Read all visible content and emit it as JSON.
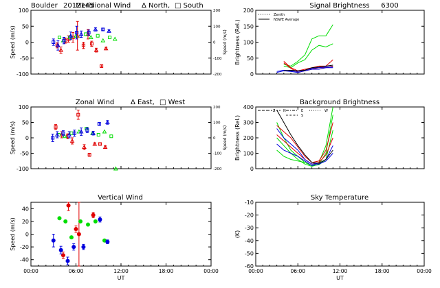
{
  "header": {
    "station": "Boulder",
    "date_code": "2012145"
  },
  "colors": {
    "red": "#e00000",
    "green": "#00dd00",
    "blue": "#0000dd",
    "black": "#000000"
  },
  "chart_data": [
    {
      "id": "meridional",
      "type": "scatter",
      "title": "Meridional Wind",
      "legend_text": [
        "Δ North,",
        "□ South"
      ],
      "xlabel": "",
      "ylabel": "Speed (m/s)",
      "ylabel_right": "Speed (m/s)",
      "xlim": [
        0,
        24
      ],
      "ylim": [
        -100,
        100
      ],
      "yticks": [
        -100,
        -50,
        0,
        50,
        100
      ],
      "ylim_right": [
        -200,
        200
      ],
      "yticks_right": [
        -200,
        -100,
        0,
        100,
        200
      ],
      "xticks": [
        0,
        6,
        12,
        18,
        24
      ],
      "xtick_labels": [
        "",
        "",
        "",
        "",
        ""
      ],
      "series": [
        {
          "name": "red",
          "color": "red",
          "x": [
            3.5,
            4.0,
            4.6,
            5.0,
            5.6,
            6.2,
            7.0,
            7.6,
            8.1,
            8.7,
            9.4,
            10.0
          ],
          "y": [
            -10,
            -25,
            5,
            10,
            15,
            20,
            -10,
            25,
            -5,
            -25,
            -75,
            -20
          ],
          "err": [
            8,
            10,
            8,
            10,
            15,
            45,
            10,
            15,
            8,
            6,
            4,
            4
          ]
        },
        {
          "name": "green",
          "color": "green",
          "x": [
            3.8,
            4.3,
            5.2,
            6.0,
            7.3,
            8.0,
            8.9,
            9.6,
            10.5,
            11.2
          ],
          "y": [
            15,
            5,
            15,
            20,
            25,
            15,
            20,
            5,
            15,
            10
          ]
        },
        {
          "name": "blue",
          "color": "blue",
          "x": [
            3.0,
            3.6,
            4.4,
            5.3,
            6.1,
            6.7,
            7.7,
            8.6,
            9.6,
            10.4
          ],
          "y": [
            0,
            -10,
            5,
            20,
            30,
            25,
            30,
            40,
            40,
            35
          ],
          "err": [
            10,
            15,
            10,
            12,
            20,
            10,
            8,
            5,
            4,
            4
          ]
        }
      ]
    },
    {
      "id": "signal",
      "type": "line",
      "title": "Signal Brightness",
      "wavelength": "6300",
      "legend": [
        "Zenith",
        "NSWE Average"
      ],
      "xlabel": "",
      "ylabel": "Brightness (Rel.)",
      "xlim": [
        0,
        24
      ],
      "ylim": [
        0,
        200
      ],
      "yticks": [
        0,
        50,
        100,
        150,
        200
      ],
      "xticks": [
        0,
        6,
        12,
        18,
        24
      ],
      "xtick_labels": [
        "",
        "",
        "",
        "",
        ""
      ],
      "series": [
        {
          "name": "green-1",
          "color": "green",
          "x": [
            4,
            5,
            6,
            7,
            8,
            9,
            10,
            11
          ],
          "y": [
            30,
            25,
            40,
            60,
            110,
            120,
            120,
            155
          ]
        },
        {
          "name": "green-2",
          "color": "green",
          "x": [
            4,
            5,
            6,
            7,
            8,
            9,
            10,
            11
          ],
          "y": [
            25,
            20,
            35,
            45,
            75,
            90,
            85,
            95
          ]
        },
        {
          "name": "red-1",
          "color": "red",
          "x": [
            4,
            5,
            6,
            7,
            8,
            9,
            10,
            11
          ],
          "y": [
            40,
            20,
            10,
            15,
            20,
            25,
            25,
            45
          ]
        },
        {
          "name": "red-2",
          "color": "red",
          "x": [
            4,
            5,
            6,
            7,
            8,
            9,
            10,
            11
          ],
          "y": [
            35,
            18,
            5,
            10,
            15,
            20,
            20,
            25
          ]
        },
        {
          "name": "blue-1",
          "color": "blue",
          "x": [
            3,
            4,
            5,
            6,
            7,
            8,
            9,
            10,
            11
          ],
          "y": [
            5,
            10,
            8,
            5,
            10,
            15,
            15,
            20,
            20
          ]
        },
        {
          "name": "blue-2",
          "color": "blue",
          "x": [
            3,
            4,
            5,
            6,
            7,
            8,
            9,
            10,
            11
          ],
          "y": [
            8,
            12,
            10,
            8,
            12,
            18,
            20,
            22,
            22
          ]
        },
        {
          "name": "black-1",
          "color": "black",
          "x": [
            4,
            5,
            6,
            7,
            8,
            9,
            10,
            11
          ],
          "y": [
            10,
            12,
            10,
            12,
            20,
            22,
            25,
            28
          ]
        }
      ]
    },
    {
      "id": "zonal",
      "type": "scatter",
      "title": "Zonal Wind",
      "legend_text": [
        "Δ East,",
        "□ West"
      ],
      "xlabel": "",
      "ylabel": "Speed (m/s)",
      "ylabel_right": "Speed (m/s)",
      "xlim": [
        0,
        24
      ],
      "ylim": [
        -100,
        100
      ],
      "yticks": [
        -100,
        -50,
        0,
        50,
        100
      ],
      "ylim_right": [
        -200,
        200
      ],
      "yticks_right": [
        -200,
        -100,
        0,
        100,
        200
      ],
      "xticks": [
        0,
        6,
        12,
        18,
        24
      ],
      "xtick_labels": [
        "",
        "",
        "",
        "",
        ""
      ],
      "series": [
        {
          "name": "red",
          "color": "red",
          "x": [
            3.3,
            4.1,
            4.9,
            5.5,
            6.3,
            7.1,
            7.8,
            8.5,
            9.2,
            9.9
          ],
          "y": [
            35,
            10,
            5,
            -10,
            75,
            -30,
            -55,
            -20,
            -20,
            -30
          ],
          "err": [
            8,
            10,
            8,
            10,
            15,
            8,
            5,
            4,
            4,
            4
          ]
        },
        {
          "name": "green",
          "color": "green",
          "x": [
            3.7,
            4.5,
            5.4,
            6.4,
            7.4,
            8.2,
            9.0,
            9.8,
            10.7,
            11.3
          ],
          "y": [
            10,
            5,
            15,
            20,
            30,
            15,
            10,
            20,
            5,
            -100
          ]
        },
        {
          "name": "blue",
          "color": "blue",
          "x": [
            2.9,
            3.5,
            4.3,
            5.1,
            5.8,
            6.7,
            7.5,
            8.3,
            9.1,
            10.2
          ],
          "y": [
            0,
            10,
            15,
            10,
            15,
            20,
            25,
            15,
            45,
            50
          ],
          "err": [
            12,
            10,
            8,
            10,
            10,
            12,
            8,
            6,
            5,
            6
          ]
        }
      ]
    },
    {
      "id": "background",
      "type": "line",
      "title": "Background Brightness",
      "legend": [
        "Z",
        "N",
        "E",
        "S",
        "W"
      ],
      "xlabel": "",
      "ylabel": "Brightness (Rel.)",
      "xlim": [
        0,
        24
      ],
      "ylim": [
        0,
        400
      ],
      "yticks": [
        0,
        100,
        200,
        300,
        400
      ],
      "xticks": [
        0,
        6,
        12,
        18,
        24
      ],
      "xtick_labels": [
        "",
        "",
        "",
        "",
        ""
      ],
      "series": [
        {
          "name": "green-1",
          "color": "green",
          "x": [
            3,
            4,
            5,
            6,
            7,
            8,
            9,
            10,
            11
          ],
          "y": [
            300,
            200,
            120,
            80,
            40,
            20,
            40,
            150,
            400
          ]
        },
        {
          "name": "green-2",
          "color": "green",
          "x": [
            3,
            4,
            5,
            6,
            7,
            8,
            9,
            10,
            11
          ],
          "y": [
            200,
            150,
            100,
            60,
            30,
            15,
            30,
            100,
            350
          ]
        },
        {
          "name": "green-3",
          "color": "green",
          "x": [
            3,
            4,
            5,
            6,
            7,
            8,
            9,
            10,
            11
          ],
          "y": [
            120,
            80,
            60,
            50,
            40,
            20,
            25,
            60,
            250
          ]
        },
        {
          "name": "red-1",
          "color": "red",
          "x": [
            3,
            4,
            5,
            6,
            7,
            8,
            9,
            10,
            11
          ],
          "y": [
            280,
            240,
            200,
            140,
            80,
            40,
            50,
            120,
            300
          ]
        },
        {
          "name": "red-2",
          "color": "red",
          "x": [
            3,
            4,
            5,
            6,
            7,
            8,
            9,
            10,
            11
          ],
          "y": [
            220,
            180,
            140,
            100,
            60,
            30,
            40,
            90,
            200
          ]
        },
        {
          "name": "blue-1",
          "color": "blue",
          "x": [
            3,
            4,
            5,
            6,
            7,
            8,
            9,
            10,
            11
          ],
          "y": [
            260,
            200,
            160,
            120,
            60,
            30,
            35,
            60,
            150
          ]
        },
        {
          "name": "blue-2",
          "color": "blue",
          "x": [
            3,
            4,
            5,
            6,
            7,
            8,
            9,
            10,
            11
          ],
          "y": [
            160,
            120,
            100,
            80,
            50,
            20,
            30,
            50,
            100
          ]
        },
        {
          "name": "black-1",
          "color": "black",
          "x": [
            3,
            4,
            5,
            6,
            7,
            8,
            9,
            10,
            11
          ],
          "y": [
            380,
            300,
            220,
            150,
            90,
            40,
            35,
            60,
            120
          ]
        }
      ]
    },
    {
      "id": "vertical",
      "type": "scatter",
      "title": "Vertical Wind",
      "xlabel": "UT",
      "ylabel": "Speed (m/s)",
      "xlim": [
        0,
        24
      ],
      "ylim": [
        -50,
        50
      ],
      "yticks": [
        -40,
        -20,
        0,
        20,
        40
      ],
      "xticks": [
        0,
        6,
        12,
        18,
        24
      ],
      "xtick_labels": [
        "00:00",
        "06:00",
        "12:00",
        "18:00",
        "00:00"
      ],
      "series": [
        {
          "name": "red",
          "color": "red",
          "x": [
            4.3,
            5.0,
            6.0,
            6.4,
            8.3
          ],
          "y": [
            -33,
            45,
            8,
            0,
            30
          ],
          "err": [
            5,
            8,
            5,
            90,
            4
          ]
        },
        {
          "name": "green",
          "color": "green",
          "x": [
            3.8,
            4.6,
            5.4,
            6.6,
            7.6,
            8.6,
            9.8
          ],
          "y": [
            25,
            20,
            -5,
            20,
            15,
            20,
            -10
          ]
        },
        {
          "name": "blue",
          "color": "blue",
          "x": [
            3.0,
            4.0,
            4.9,
            5.7,
            7.0,
            9.2,
            10.2
          ],
          "y": [
            -10,
            -25,
            -42,
            -20,
            -20,
            23,
            -12
          ],
          "err": [
            10,
            6,
            6,
            5,
            4,
            4,
            3
          ]
        }
      ]
    },
    {
      "id": "sky",
      "type": "line",
      "title": "Sky Temperature",
      "xlabel": "UT",
      "ylabel": "(K)",
      "xlim": [
        0,
        24
      ],
      "ylim": [
        -60,
        -10
      ],
      "yticks": [
        -60,
        -50,
        -40,
        -30,
        -20,
        -10
      ],
      "xticks": [
        0,
        6,
        12,
        18,
        24
      ],
      "xtick_labels": [
        "00:00",
        "06:00",
        "12:00",
        "18:00",
        "00:00"
      ],
      "series": []
    }
  ]
}
